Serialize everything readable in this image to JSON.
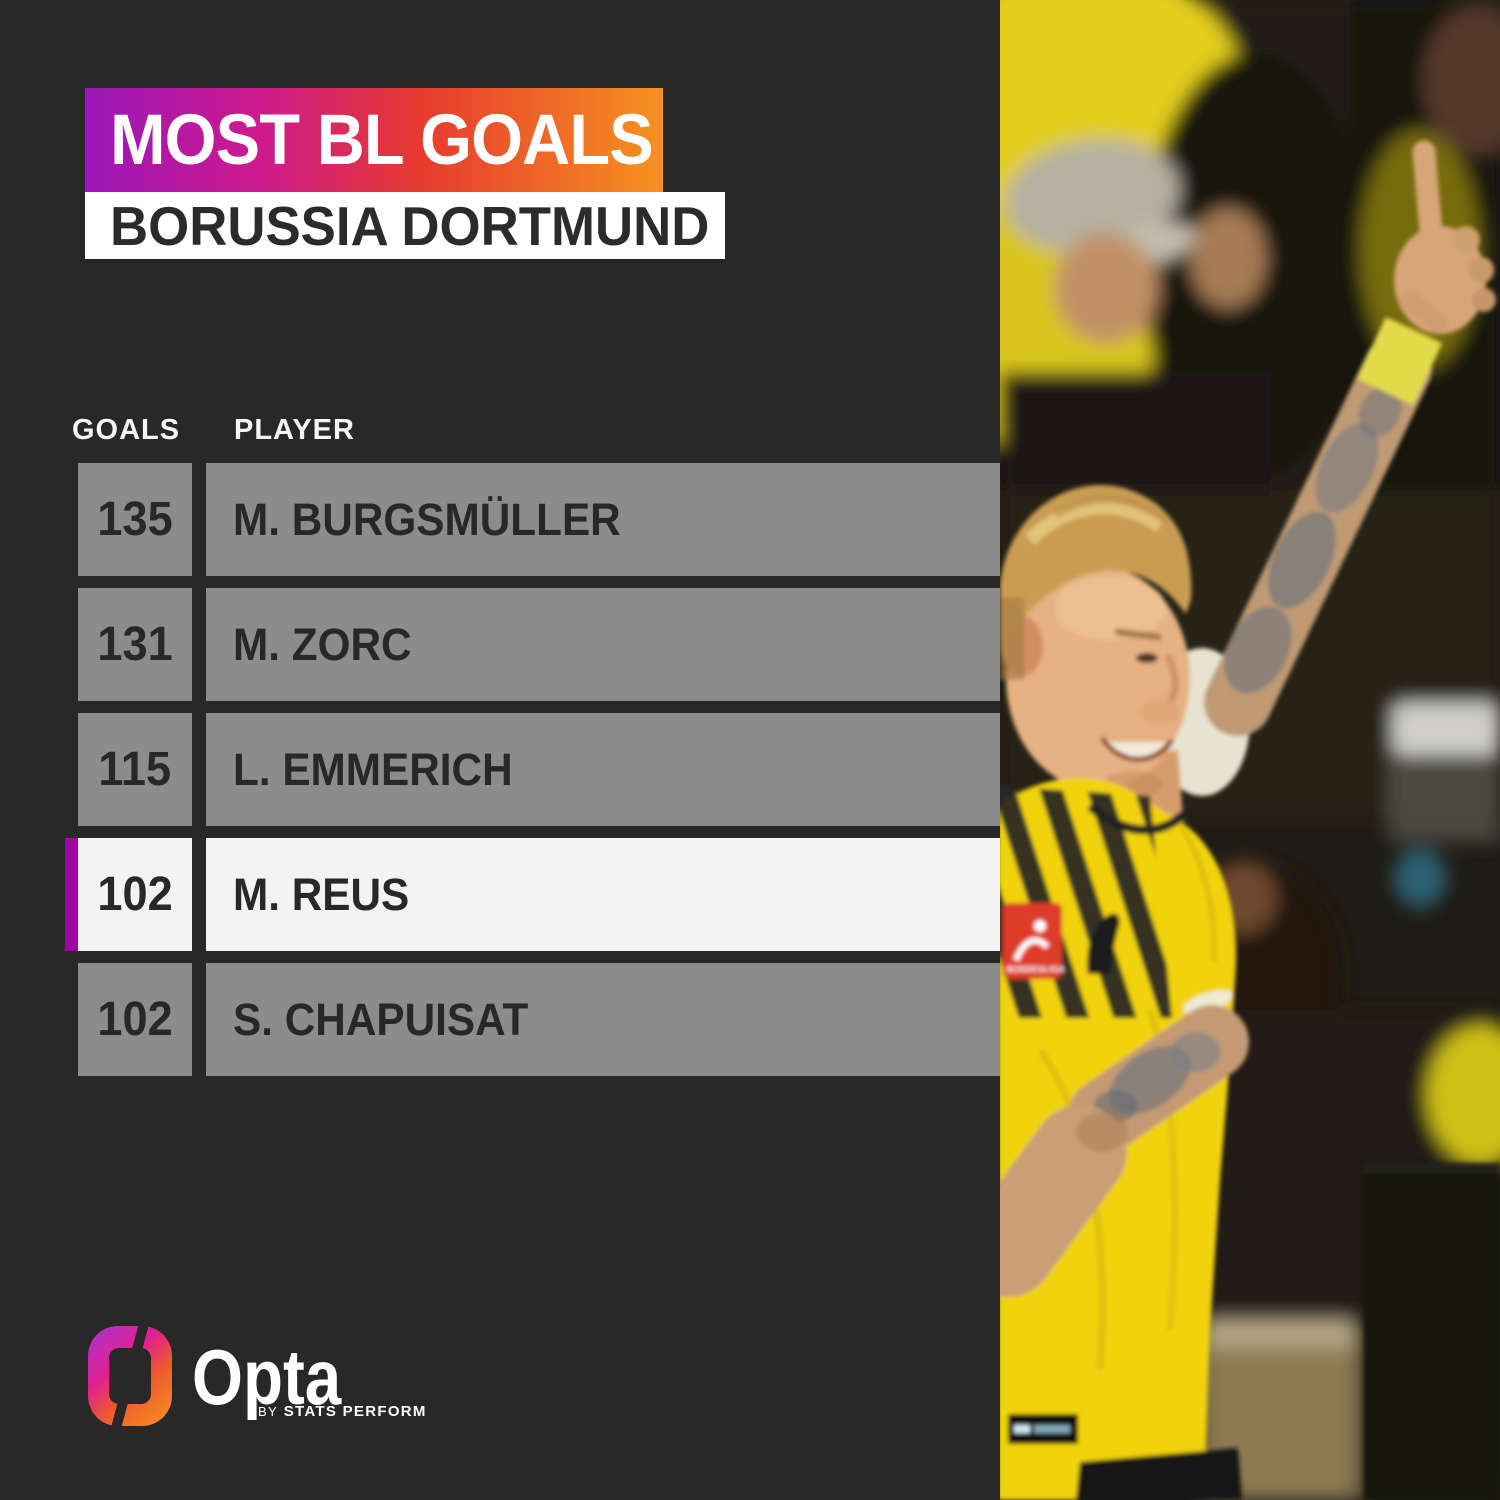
{
  "header": {
    "title": "MOST BL GOALS",
    "subtitle": "BORUSSIA DORTMUND"
  },
  "table": {
    "goals_header": "GOALS",
    "player_header": "PLAYER",
    "rows": [
      {
        "goals": "135",
        "player": "M. BURGSMÜLLER",
        "highlighted": false
      },
      {
        "goals": "131",
        "player": "M. ZORC",
        "highlighted": false
      },
      {
        "goals": "115",
        "player": "L. EMMERICH",
        "highlighted": false
      },
      {
        "goals": "102",
        "player": "M. REUS",
        "highlighted": true
      },
      {
        "goals": "102",
        "player": "S. CHAPUISAT",
        "highlighted": false
      }
    ]
  },
  "footer": {
    "brand": "Opta",
    "by": "BY",
    "tagline": "STATS PERFORM"
  },
  "photo": {
    "alt": "Borussia Dortmund player in yellow kit celebrating with tattooed arm raised and index finger pointing up in front of yellow-clad fans",
    "jersey_patch_text": "BUNDESLIGA"
  },
  "colors": {
    "panel_bg": "#282828",
    "banner_gradient": [
      "#9a17b8",
      "#cd1a8e",
      "#e63a2e",
      "#f69220"
    ],
    "highlight_stripe": "#9a0aa0",
    "row_grey": "#8c8c8c",
    "highlight_row": "#f3f3f3",
    "dortmund_yellow": "#f2d30f"
  },
  "chart_data": {
    "type": "table",
    "title": "MOST BL GOALS",
    "subtitle": "BORUSSIA DORTMUND",
    "columns": [
      "GOALS",
      "PLAYER"
    ],
    "rows": [
      [
        135,
        "M. BURGSMÜLLER"
      ],
      [
        131,
        "M. ZORC"
      ],
      [
        115,
        "L. EMMERICH"
      ],
      [
        102,
        "M. REUS"
      ],
      [
        102,
        "S. CHAPUISAT"
      ]
    ],
    "highlighted_row_index": 3,
    "highlighted_player": "M. REUS",
    "legend_position": "none",
    "grid": false
  }
}
